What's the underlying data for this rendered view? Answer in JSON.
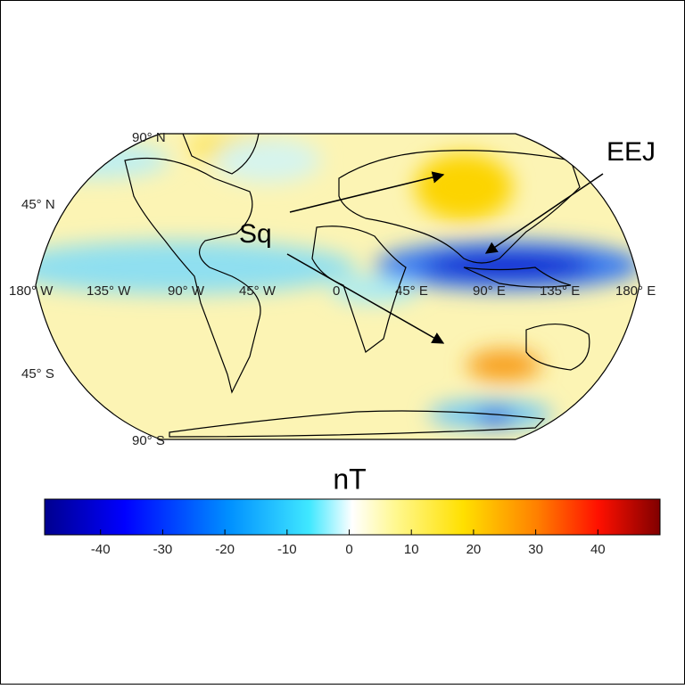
{
  "map": {
    "latitude_labels": [
      "90° N",
      "45° N",
      "45° S",
      "90° S"
    ],
    "longitude_labels": [
      "180° W",
      "135° W",
      "90° W",
      "45° W",
      "0",
      "45° E",
      "90° E",
      "135° E",
      "180° E"
    ],
    "annotations": [
      "Sq",
      "EEJ"
    ]
  },
  "colorbar": {
    "label": "nT",
    "lim": [
      -49,
      50
    ],
    "ticks": [
      -40,
      -30,
      -20,
      -10,
      0,
      10,
      20,
      30,
      40
    ]
  }
}
